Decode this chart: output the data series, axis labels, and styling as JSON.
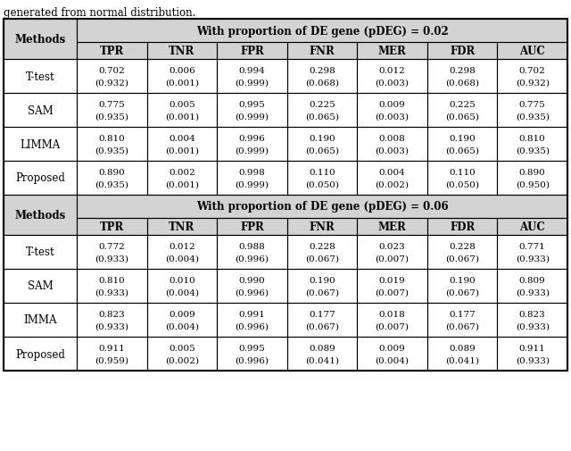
{
  "title_text": "generated from normal distribution.",
  "section1_header": "With proportion of DE gene (pDEG) = 0.02",
  "section2_header": "With proportion of DE gene (pDEG) = 0.06",
  "col_headers": [
    "Methods",
    "TPR",
    "TNR",
    "FPR",
    "FNR",
    "MER",
    "FDR",
    "AUC"
  ],
  "section1_rows": [
    {
      "method": "T-test",
      "values": [
        [
          "0.702",
          "0.006",
          "0.994",
          "0.298",
          "0.012",
          "0.298",
          "0.702"
        ],
        [
          "(0.932)",
          "(0.001)",
          "(0.999)",
          "(0.068)",
          "(0.003)",
          "(0.068)",
          "(0.932)"
        ]
      ]
    },
    {
      "method": "SAM",
      "values": [
        [
          "0.775",
          "0.005",
          "0.995",
          "0.225",
          "0.009",
          "0.225",
          "0.775"
        ],
        [
          "(0.935)",
          "(0.001)",
          "(0.999)",
          "(0.065)",
          "(0.003)",
          "(0.065)",
          "(0.935)"
        ]
      ]
    },
    {
      "method": "LIMMA",
      "values": [
        [
          "0.810",
          "0.004",
          "0.996",
          "0.190",
          "0.008",
          "0.190",
          "0.810"
        ],
        [
          "(0.935)",
          "(0.001)",
          "(0.999)",
          "(0.065)",
          "(0.003)",
          "(0.065)",
          "(0.935)"
        ]
      ]
    },
    {
      "method": "Proposed",
      "values": [
        [
          "0.890",
          "0.002",
          "0.998",
          "0.110",
          "0.004",
          "0.110",
          "0.890"
        ],
        [
          "(0.935)",
          "(0.001)",
          "(0.999)",
          "(0.050)",
          "(0.002)",
          "(0.050)",
          "(0.950)"
        ]
      ]
    }
  ],
  "section2_rows": [
    {
      "method": "T-test",
      "values": [
        [
          "0.772",
          "0.012",
          "0.988",
          "0.228",
          "0.023",
          "0.228",
          "0.771"
        ],
        [
          "(0.933)",
          "(0.004)",
          "(0.996)",
          "(0.067)",
          "(0.007)",
          "(0.067)",
          "(0.933)"
        ]
      ]
    },
    {
      "method": "SAM",
      "values": [
        [
          "0.810",
          "0.010",
          "0.990",
          "0.190",
          "0.019",
          "0.190",
          "0.809"
        ],
        [
          "(0.933)",
          "(0.004)",
          "(0.996)",
          "(0.067)",
          "(0.007)",
          "(0.067)",
          "(0.933)"
        ]
      ]
    },
    {
      "method": "IMMA",
      "values": [
        [
          "0.823",
          "0.009",
          "0.991",
          "0.177",
          "0.018",
          "0.177",
          "0.823"
        ],
        [
          "(0.933)",
          "(0.004)",
          "(0.996)",
          "(0.067)",
          "(0.007)",
          "(0.067)",
          "(0.933)"
        ]
      ]
    },
    {
      "method": "Proposed",
      "values": [
        [
          "0.911",
          "0.005",
          "0.995",
          "0.089",
          "0.009",
          "0.089",
          "0.911"
        ],
        [
          "(0.959)",
          "(0.002)",
          "(0.996)",
          "(0.041)",
          "(0.004)",
          "(0.041)",
          "(0.933)"
        ]
      ]
    }
  ],
  "figsize": [
    6.4,
    5.06
  ],
  "dpi": 100,
  "bg_color": "#ffffff",
  "header_bg": "#d3d3d3",
  "border_color": "#000000",
  "font_size_data": 7.5,
  "font_size_header": 8.5,
  "font_size_section": 8.5,
  "font_size_title": 8.5
}
